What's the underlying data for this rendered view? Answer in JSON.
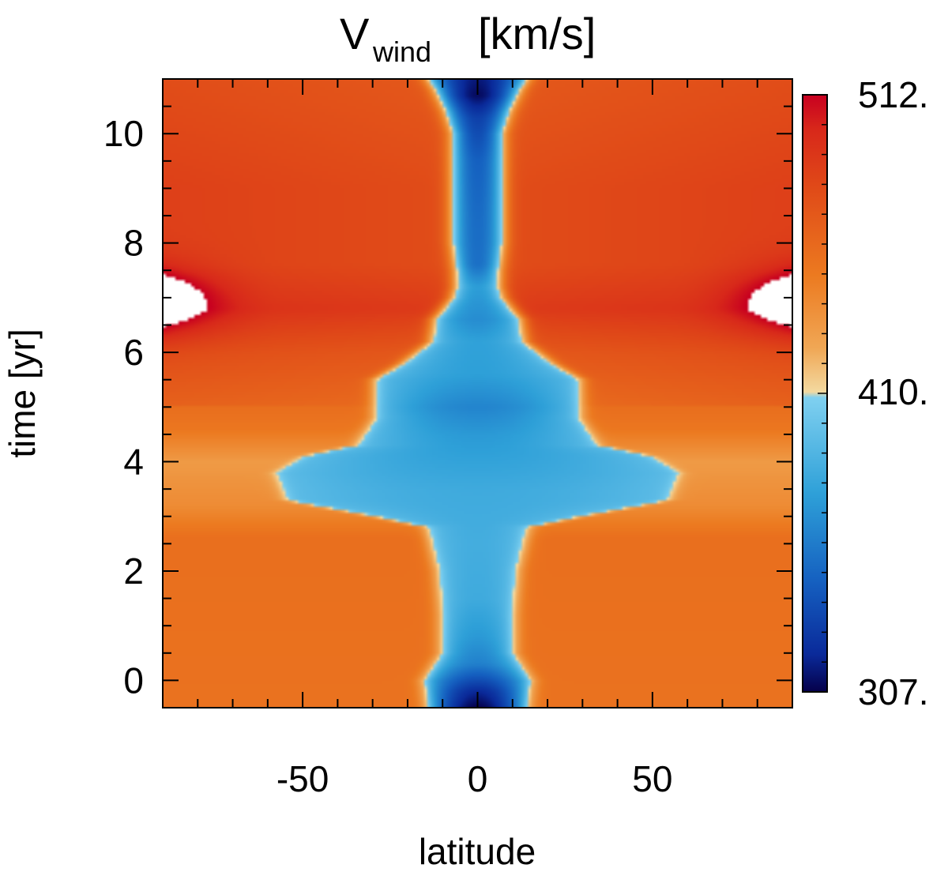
{
  "chart_data": {
    "type": "heatmap",
    "title": {
      "main": "V",
      "subscript": "wind",
      "units": "[km/s]"
    },
    "xlabel": "latitude",
    "ylabel": "time [yr]",
    "xlim": [
      -90,
      90
    ],
    "ylim": [
      -0.5,
      11
    ],
    "x_ticks": [
      {
        "value": -50,
        "label": "-50"
      },
      {
        "value": 0,
        "label": "0"
      },
      {
        "value": 50,
        "label": "50"
      }
    ],
    "y_ticks": [
      {
        "value": 0,
        "label": "0"
      },
      {
        "value": 2,
        "label": "2"
      },
      {
        "value": 4,
        "label": "4"
      },
      {
        "value": 6,
        "label": "6"
      },
      {
        "value": 8,
        "label": "8"
      },
      {
        "value": 10,
        "label": "10"
      }
    ],
    "colorbar": {
      "min": 307,
      "max": 512,
      "labels": [
        {
          "value": 512,
          "label": "512."
        },
        {
          "value": 410,
          "label": "410."
        },
        {
          "value": 307,
          "label": "307."
        }
      ],
      "stops": [
        {
          "value": 307,
          "color": "#05004a"
        },
        {
          "value": 320,
          "color": "#0a2a9a"
        },
        {
          "value": 345,
          "color": "#1560c0"
        },
        {
          "value": 375,
          "color": "#2ea0d8"
        },
        {
          "value": 408,
          "color": "#7fd0f0"
        },
        {
          "value": 410,
          "color": "#f3d9a0"
        },
        {
          "value": 425,
          "color": "#f0a755"
        },
        {
          "value": 450,
          "color": "#ec7a20"
        },
        {
          "value": 480,
          "color": "#e04a18"
        },
        {
          "value": 500,
          "color": "#d8281a"
        },
        {
          "value": 512,
          "color": "#c80020"
        }
      ]
    },
    "field": {
      "background_kms": 468,
      "time_profile_kms": [
        [
          -0.5,
          455
        ],
        [
          2.6,
          457
        ],
        [
          3.2,
          440
        ],
        [
          4.0,
          432
        ],
        [
          4.6,
          452
        ],
        [
          6.0,
          470
        ],
        [
          6.8,
          488
        ],
        [
          7.6,
          478
        ],
        [
          9.0,
          478
        ],
        [
          11.0,
          470
        ]
      ],
      "polar_spike": {
        "center_time": 6.95,
        "peak_kms": 515
      },
      "central_stream": {
        "min_kms": 395,
        "width_profile_deg": [
          [
            -0.5,
            15
          ],
          [
            0.0,
            16
          ],
          [
            0.5,
            11
          ],
          [
            1.2,
            11
          ],
          [
            2.0,
            12
          ],
          [
            2.8,
            15
          ],
          [
            3.0,
            30
          ],
          [
            3.3,
            55
          ],
          [
            3.8,
            58
          ],
          [
            4.1,
            50
          ],
          [
            4.3,
            35
          ],
          [
            4.8,
            30
          ],
          [
            5.5,
            30
          ],
          [
            5.8,
            22
          ],
          [
            6.2,
            14
          ],
          [
            6.6,
            13
          ],
          [
            7.0,
            8
          ],
          [
            7.2,
            7
          ],
          [
            7.5,
            7
          ],
          [
            8.0,
            8
          ],
          [
            9.0,
            8
          ],
          [
            10.0,
            8
          ],
          [
            10.4,
            10
          ],
          [
            10.8,
            13
          ],
          [
            11.0,
            15
          ]
        ],
        "depth_profile_kms": [
          [
            -0.5,
            307
          ],
          [
            -0.2,
            320
          ],
          [
            0.3,
            360
          ],
          [
            0.8,
            372
          ],
          [
            1.5,
            382
          ],
          [
            2.5,
            384
          ],
          [
            3.5,
            382
          ],
          [
            4.5,
            372
          ],
          [
            5.0,
            362
          ],
          [
            5.6,
            375
          ],
          [
            6.2,
            376
          ],
          [
            6.6,
            366
          ],
          [
            7.2,
            374
          ],
          [
            7.6,
            352
          ],
          [
            8.5,
            350
          ],
          [
            9.5,
            345
          ],
          [
            10.3,
            330
          ],
          [
            10.7,
            310
          ],
          [
            11.0,
            315
          ]
        ]
      },
      "ring_features": [
        {
          "latitude": 28,
          "time": 3.45,
          "kms": 425
        },
        {
          "latitude": -28,
          "time": 3.45,
          "kms": 425
        }
      ]
    }
  }
}
